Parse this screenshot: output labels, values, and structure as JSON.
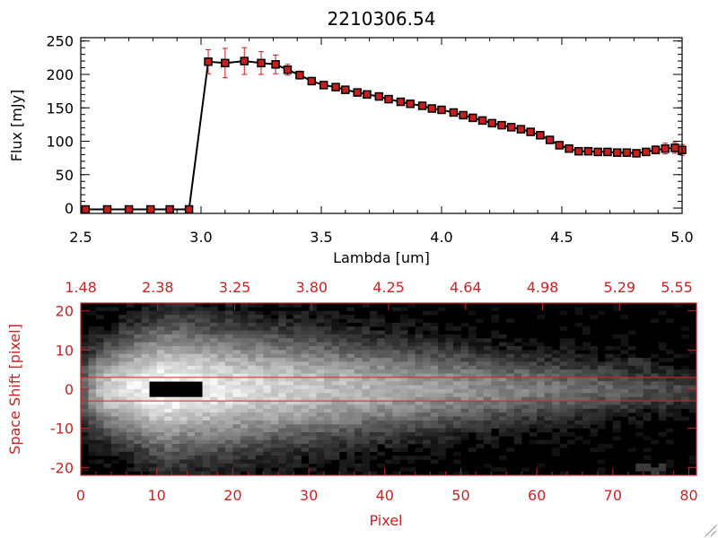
{
  "chart_data": [
    {
      "type": "line",
      "title": "2210306.54",
      "xlabel": "Lambda [um]",
      "ylabel": "Flux [mJy]",
      "xlim": [
        2.5,
        5.0
      ],
      "ylim": [
        -8,
        255
      ],
      "x_ticks": [
        "2.5",
        "3.0",
        "3.5",
        "4.0",
        "4.5",
        "5.0"
      ],
      "y_ticks": [
        "0",
        "50",
        "100",
        "150",
        "200",
        "250"
      ],
      "marker_color": "#c81e1e",
      "errorbar_color": "#c81e1e",
      "line_color": "#000000",
      "series": [
        {
          "x": [
            2.52,
            2.61,
            2.7,
            2.79,
            2.87,
            2.95,
            3.03,
            3.1,
            3.18,
            3.25,
            3.31,
            3.36,
            3.41,
            3.46,
            3.51,
            3.56,
            3.6,
            3.65,
            3.69,
            3.74,
            3.78,
            3.83,
            3.87,
            3.92,
            3.96,
            4.0,
            4.05,
            4.09,
            4.13,
            4.17,
            4.21,
            4.25,
            4.29,
            4.33,
            4.37,
            4.41,
            4.45,
            4.49,
            4.53,
            4.57,
            4.61,
            4.65,
            4.69,
            4.73,
            4.77,
            4.81,
            4.85,
            4.89,
            4.93,
            4.97,
            5.0
          ],
          "y": [
            -2,
            -2,
            -2,
            -2,
            -2,
            -2,
            219,
            217,
            220,
            217,
            215,
            207,
            199,
            190,
            184,
            181,
            177,
            173,
            170,
            167,
            163,
            159,
            156,
            153,
            149,
            147,
            143,
            139,
            135,
            131,
            127,
            124,
            121,
            118,
            114,
            109,
            102,
            94,
            89,
            85,
            85,
            84,
            84,
            83,
            83,
            82,
            84,
            87,
            89,
            90,
            87
          ],
          "yerr": [
            0,
            0,
            0,
            0,
            0,
            0,
            18,
            22,
            20,
            17,
            14,
            8,
            6,
            5,
            4,
            4,
            4,
            4,
            4,
            4,
            4,
            4,
            4,
            4,
            4,
            4,
            4,
            4,
            4,
            4,
            4,
            4,
            4,
            4,
            4,
            4,
            4,
            4,
            4,
            4,
            4,
            4,
            4,
            4,
            4,
            4,
            4,
            6,
            8,
            8,
            8
          ]
        }
      ]
    },
    {
      "type": "heatmap",
      "xlabel": "Pixel",
      "ylabel": "Space Shift [pixel]",
      "xlim": [
        0,
        81
      ],
      "ylim": [
        -22,
        22
      ],
      "x_ticks": [
        "0",
        "10",
        "20",
        "30",
        "40",
        "50",
        "60",
        "70",
        "80"
      ],
      "y_ticks": [
        "-20",
        "-10",
        "0",
        "10",
        "20"
      ],
      "top_ticks": [
        "1.48",
        "2.38",
        "3.25",
        "3.80",
        "4.25",
        "4.64",
        "4.98",
        "5.29",
        "5.55"
      ],
      "colormap": "grayscale",
      "extraction_lines": [
        3,
        -3
      ],
      "axis_color": "#cc2222",
      "line_color": "#dd2222"
    }
  ]
}
